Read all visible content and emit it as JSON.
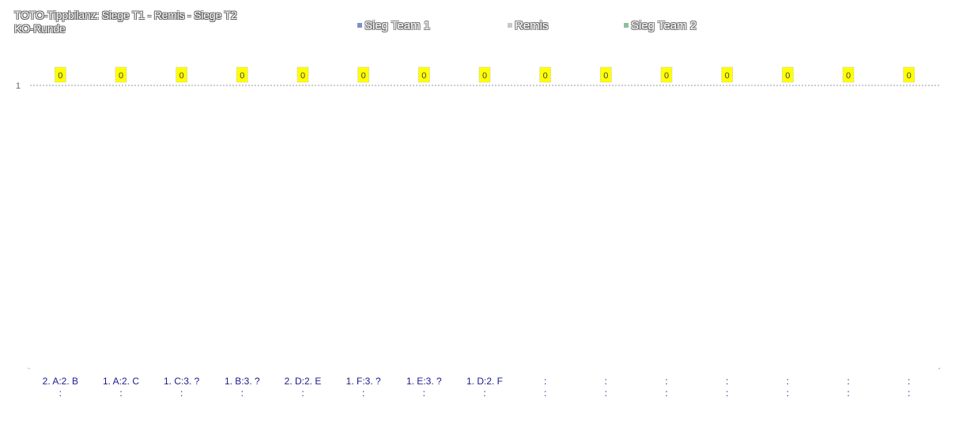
{
  "chart_data": {
    "type": "bar",
    "title": "TOTO-Tippbilanz:  Siege T1 - Remis - Siege T2",
    "subtitle": "KO-Runde",
    "categories": [
      [
        "2. A:2. B",
        ":"
      ],
      [
        "1. A:2. C",
        ":"
      ],
      [
        "1. C:3. ?",
        ":"
      ],
      [
        "1. B:3. ?",
        ":"
      ],
      [
        "2. D:2. E",
        ":"
      ],
      [
        "1. F:3. ?",
        ":"
      ],
      [
        "1. E:3. ?",
        ":"
      ],
      [
        "1. D:2. F",
        ":"
      ],
      [
        ":",
        ":"
      ],
      [
        ":",
        ":"
      ],
      [
        ":",
        ":"
      ],
      [
        ":",
        ":"
      ],
      [
        ":",
        ":"
      ],
      [
        ":",
        ":"
      ],
      [
        ":",
        ":"
      ]
    ],
    "series": [
      {
        "name": "Sieg Team 1",
        "color": "#7f8fc8",
        "values": [
          0,
          0,
          0,
          0,
          0,
          0,
          0,
          0,
          0,
          0,
          0,
          0,
          0,
          0,
          0
        ]
      },
      {
        "name": "Remis",
        "color": "#c8c8c8",
        "values": [
          0,
          0,
          0,
          0,
          0,
          0,
          0,
          0,
          0,
          0,
          0,
          0,
          0,
          0,
          0
        ]
      },
      {
        "name": "Sieg Team 2",
        "color": "#8fbf9f",
        "values": [
          0,
          0,
          0,
          0,
          0,
          0,
          0,
          0,
          0,
          0,
          0,
          0,
          0,
          0,
          0
        ]
      }
    ],
    "data_labels": [
      "0",
      "0",
      "0",
      "0",
      "0",
      "0",
      "0",
      "0",
      "0",
      "0",
      "0",
      "0",
      "0",
      "0",
      "0"
    ],
    "ylim": [
      0,
      1
    ],
    "yticks": [
      "1"
    ],
    "grid": true,
    "legend_position": "top",
    "label_color": "#1a1a8c",
    "data_label_bg": "#ffff00"
  }
}
